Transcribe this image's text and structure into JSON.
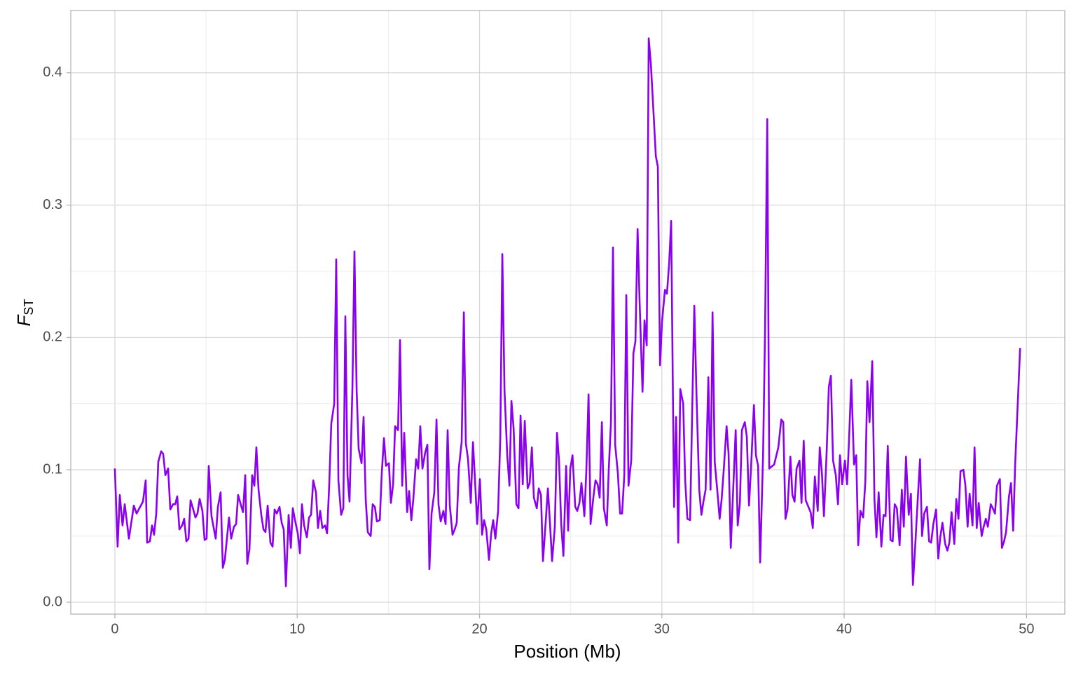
{
  "chart_data": {
    "type": "line",
    "xlabel": "Position (Mb)",
    "ylabel": "F",
    "ylabel_sub": "ST",
    "color": "#8b00ee",
    "xlim": [
      -2.42,
      52.1
    ],
    "ylim": [
      -0.009,
      0.447
    ],
    "xticks": [
      0,
      10,
      20,
      30,
      40,
      50
    ],
    "xminor_ticks": [
      5,
      15,
      25,
      35,
      45
    ],
    "yticks": [
      {
        "value": 0,
        "label": "0.0"
      },
      0.1,
      0.2,
      0.3,
      0.4
    ],
    "yminor_ticks": [
      0.05,
      0.15,
      0.25,
      0.35
    ],
    "grid": true,
    "x": [
      0,
      0.15,
      0.27,
      0.42,
      0.54,
      0.77,
      1.04,
      1.19,
      1.54,
      1.69,
      1.77,
      1.92,
      2.04,
      2.15,
      2.27,
      2.38,
      2.54,
      2.65,
      2.77,
      2.92,
      3.04,
      3.19,
      3.31,
      3.42,
      3.54,
      3.69,
      3.8,
      3.92,
      4.04,
      4.15,
      4.3,
      4.42,
      4.53,
      4.65,
      4.8,
      4.92,
      5.03,
      5.15,
      5.3,
      5.53,
      5.65,
      5.8,
      5.92,
      6.03,
      6.26,
      6.38,
      6.53,
      6.65,
      6.76,
      6.92,
      7.03,
      7.15,
      7.26,
      7.38,
      7.53,
      7.65,
      7.76,
      7.88,
      8.03,
      8.15,
      8.26,
      8.38,
      8.53,
      8.65,
      8.76,
      8.88,
      9.03,
      9.15,
      9.26,
      9.38,
      9.53,
      9.65,
      9.76,
      9.88,
      10.03,
      10.15,
      10.26,
      10.38,
      10.53,
      10.65,
      10.76,
      10.88,
      11.03,
      11.14,
      11.26,
      11.38,
      11.53,
      11.64,
      11.76,
      11.87,
      12.03,
      12.14,
      12.26,
      12.41,
      12.53,
      12.64,
      12.76,
      12.87,
      13.03,
      13.14,
      13.26,
      13.37,
      13.53,
      13.64,
      13.76,
      13.87,
      14.03,
      14.14,
      14.26,
      14.37,
      14.53,
      14.64,
      14.76,
      14.87,
      15.03,
      15.14,
      15.26,
      15.37,
      15.53,
      15.64,
      15.76,
      15.87,
      16.03,
      16.14,
      16.26,
      16.37,
      16.52,
      16.64,
      16.75,
      16.87,
      17.02,
      17.14,
      17.25,
      17.37,
      17.52,
      17.64,
      17.75,
      17.87,
      18.02,
      18.14,
      18.25,
      18.37,
      18.52,
      18.64,
      18.75,
      18.87,
      19.02,
      19.14,
      19.25,
      19.37,
      19.52,
      19.64,
      19.75,
      19.87,
      20.02,
      20.14,
      20.25,
      20.37,
      20.52,
      20.64,
      20.75,
      20.87,
      21.02,
      21.14,
      21.25,
      21.37,
      21.52,
      21.64,
      21.75,
      21.87,
      22.02,
      22.14,
      22.25,
      22.37,
      22.48,
      22.64,
      22.75,
      22.87,
      22.98,
      23.14,
      23.25,
      23.37,
      23.48,
      23.63,
      23.75,
      23.87,
      23.98,
      24.13,
      24.25,
      24.36,
      24.48,
      24.6,
      24.75,
      24.86,
      24.98,
      25.1,
      25.25,
      25.36,
      25.48,
      25.59,
      25.75,
      25.86,
      25.98,
      26.09,
      26.25,
      26.36,
      26.48,
      26.59,
      26.71,
      26.82,
      26.98,
      27.09,
      27.21,
      27.32,
      27.44,
      27.59,
      27.71,
      27.82,
      27.94,
      28.05,
      28.17,
      28.32,
      28.44,
      28.55,
      28.67,
      28.78,
      28.94,
      29.05,
      29.17,
      29.28,
      29.4,
      29.55,
      29.67,
      29.78,
      29.9,
      30.01,
      30.17,
      30.28,
      30.4,
      30.51,
      30.67,
      30.78,
      30.9,
      31.01,
      31.17,
      31.28,
      31.4,
      31.55,
      31.67,
      31.78,
      31.9,
      32.05,
      32.17,
      32.28,
      32.4,
      32.55,
      32.67,
      32.78,
      32.9,
      33.05,
      33.17,
      33.28,
      33.4,
      33.55,
      33.66,
      33.78,
      33.89,
      34.05,
      34.16,
      34.28,
      34.39,
      34.55,
      34.66,
      34.78,
      34.89,
      35.05,
      35.16,
      35.28,
      35.39,
      35.55,
      35.66,
      35.78,
      35.89,
      36.16,
      36.39,
      36.55,
      36.66,
      36.78,
      36.89,
      37.05,
      37.16,
      37.28,
      37.39,
      37.55,
      37.66,
      37.78,
      37.89,
      38.16,
      38.28,
      38.39,
      38.55,
      38.66,
      38.78,
      38.89,
      39.04,
      39.16,
      39.27,
      39.39,
      39.54,
      39.66,
      39.77,
      39.89,
      40.04,
      40.16,
      40.27,
      40.39,
      40.54,
      40.66,
      40.77,
      40.89,
      41.04,
      41.16,
      41.27,
      41.39,
      41.54,
      41.66,
      41.77,
      41.89,
      42.04,
      42.16,
      42.27,
      42.39,
      42.54,
      42.66,
      42.77,
      42.89,
      43.04,
      43.16,
      43.27,
      43.39,
      43.54,
      43.66,
      43.77,
      43.89,
      44.04,
      44.16,
      44.27,
      44.39,
      44.54,
      44.66,
      44.77,
      44.89,
      45.04,
      45.16,
      45.27,
      45.39,
      45.54,
      45.66,
      45.77,
      45.89,
      46.04,
      46.15,
      46.27,
      46.38,
      46.54,
      46.65,
      46.77,
      46.88,
      47.04,
      47.15,
      47.27,
      47.38,
      47.54,
      47.65,
      47.77,
      47.88,
      48.04,
      48.15,
      48.27,
      48.38,
      48.54,
      48.65,
      48.77,
      48.88,
      49.04,
      49.15,
      49.27,
      49.38,
      49.65
    ],
    "values": [
      0.101,
      0.042,
      0.081,
      0.058,
      0.074,
      0.048,
      0.073,
      0.067,
      0.076,
      0.092,
      0.045,
      0.046,
      0.058,
      0.051,
      0.067,
      0.106,
      0.114,
      0.112,
      0.096,
      0.101,
      0.07,
      0.074,
      0.074,
      0.08,
      0.055,
      0.058,
      0.063,
      0.046,
      0.048,
      0.077,
      0.07,
      0.064,
      0.067,
      0.078,
      0.069,
      0.047,
      0.048,
      0.103,
      0.065,
      0.048,
      0.072,
      0.083,
      0.026,
      0.032,
      0.064,
      0.048,
      0.057,
      0.059,
      0.081,
      0.073,
      0.068,
      0.096,
      0.029,
      0.04,
      0.096,
      0.088,
      0.117,
      0.085,
      0.066,
      0.055,
      0.053,
      0.073,
      0.045,
      0.042,
      0.07,
      0.067,
      0.072,
      0.06,
      0.055,
      0.012,
      0.066,
      0.041,
      0.071,
      0.062,
      0.052,
      0.037,
      0.074,
      0.058,
      0.049,
      0.064,
      0.066,
      0.092,
      0.083,
      0.056,
      0.069,
      0.056,
      0.058,
      0.052,
      0.09,
      0.135,
      0.15,
      0.259,
      0.092,
      0.066,
      0.071,
      0.216,
      0.096,
      0.076,
      0.163,
      0.265,
      0.16,
      0.116,
      0.105,
      0.14,
      0.077,
      0.053,
      0.05,
      0.074,
      0.072,
      0.061,
      0.062,
      0.098,
      0.124,
      0.103,
      0.105,
      0.075,
      0.089,
      0.133,
      0.13,
      0.198,
      0.088,
      0.128,
      0.068,
      0.084,
      0.062,
      0.078,
      0.108,
      0.101,
      0.133,
      0.101,
      0.113,
      0.119,
      0.025,
      0.067,
      0.083,
      0.138,
      0.074,
      0.061,
      0.069,
      0.059,
      0.13,
      0.073,
      0.051,
      0.055,
      0.06,
      0.102,
      0.121,
      0.219,
      0.12,
      0.108,
      0.075,
      0.121,
      0.093,
      0.059,
      0.093,
      0.051,
      0.062,
      0.055,
      0.032,
      0.052,
      0.062,
      0.048,
      0.069,
      0.125,
      0.263,
      0.16,
      0.111,
      0.088,
      0.152,
      0.131,
      0.074,
      0.071,
      0.141,
      0.089,
      0.137,
      0.086,
      0.09,
      0.117,
      0.079,
      0.071,
      0.086,
      0.081,
      0.031,
      0.061,
      0.086,
      0.058,
      0.031,
      0.057,
      0.128,
      0.107,
      0.059,
      0.035,
      0.103,
      0.054,
      0.101,
      0.111,
      0.072,
      0.069,
      0.075,
      0.09,
      0.065,
      0.1,
      0.157,
      0.059,
      0.08,
      0.092,
      0.089,
      0.079,
      0.136,
      0.071,
      0.058,
      0.101,
      0.136,
      0.268,
      0.119,
      0.097,
      0.067,
      0.067,
      0.096,
      0.232,
      0.088,
      0.107,
      0.188,
      0.197,
      0.282,
      0.227,
      0.159,
      0.213,
      0.194,
      0.426,
      0.406,
      0.368,
      0.337,
      0.329,
      0.179,
      0.212,
      0.236,
      0.233,
      0.256,
      0.288,
      0.072,
      0.14,
      0.045,
      0.161,
      0.15,
      0.092,
      0.063,
      0.062,
      0.149,
      0.224,
      0.157,
      0.085,
      0.066,
      0.076,
      0.085,
      0.17,
      0.085,
      0.219,
      0.106,
      0.083,
      0.063,
      0.078,
      0.101,
      0.133,
      0.112,
      0.041,
      0.078,
      0.13,
      0.058,
      0.075,
      0.13,
      0.136,
      0.125,
      0.073,
      0.101,
      0.149,
      0.111,
      0.103,
      0.03,
      0.11,
      0.204,
      0.365,
      0.101,
      0.104,
      0.117,
      0.138,
      0.136,
      0.063,
      0.07,
      0.11,
      0.081,
      0.076,
      0.101,
      0.107,
      0.075,
      0.122,
      0.077,
      0.068,
      0.056,
      0.095,
      0.069,
      0.117,
      0.097,
      0.065,
      0.114,
      0.163,
      0.171,
      0.107,
      0.096,
      0.074,
      0.111,
      0.089,
      0.107,
      0.089,
      0.124,
      0.168,
      0.104,
      0.111,
      0.043,
      0.069,
      0.064,
      0.091,
      0.167,
      0.136,
      0.182,
      0.078,
      0.049,
      0.083,
      0.042,
      0.066,
      0.065,
      0.118,
      0.047,
      0.046,
      0.074,
      0.071,
      0.043,
      0.085,
      0.057,
      0.11,
      0.066,
      0.082,
      0.013,
      0.041,
      0.079,
      0.108,
      0.05,
      0.067,
      0.072,
      0.046,
      0.045,
      0.059,
      0.07,
      0.033,
      0.049,
      0.06,
      0.044,
      0.039,
      0.045,
      0.068,
      0.044,
      0.078,
      0.063,
      0.099,
      0.1,
      0.088,
      0.057,
      0.082,
      0.058,
      0.117,
      0.056,
      0.075,
      0.05,
      0.057,
      0.063,
      0.057,
      0.074,
      0.071,
      0.067,
      0.088,
      0.093,
      0.041,
      0.046,
      0.053,
      0.08,
      0.09,
      0.054,
      0.105,
      0.192
    ]
  }
}
